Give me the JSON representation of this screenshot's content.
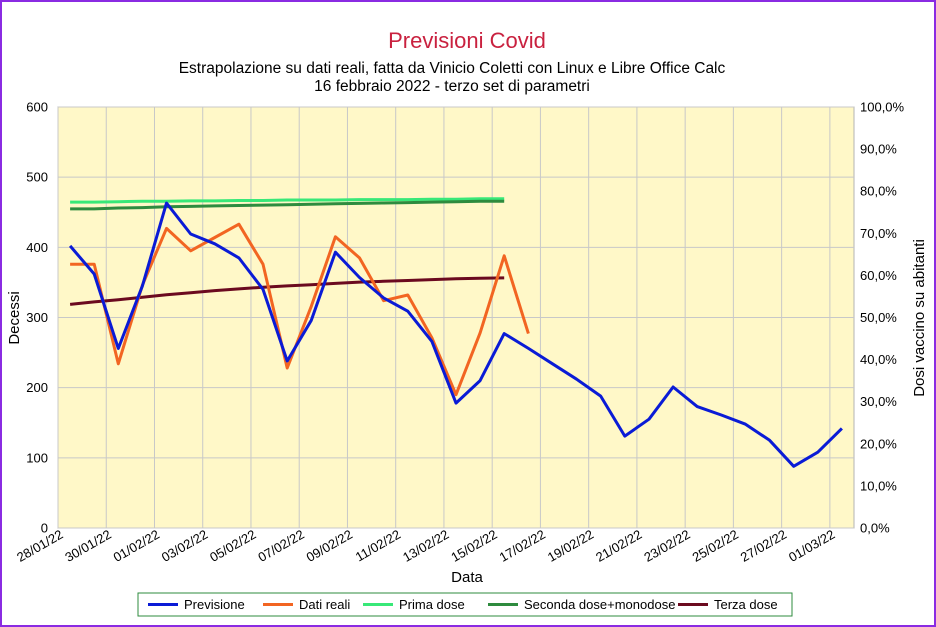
{
  "chart_data": {
    "type": "line",
    "title": "Previsioni Covid",
    "subtitle_lines": [
      "Estrapolazione su dati reali, fatta da Vinicio Coletti con Linux e Libre Office Calc",
      "16 febbraio 2022 - terzo set di parametri"
    ],
    "xlabel": "Data",
    "ylabel": "Decessi",
    "y2label": "Dosi vaccino su abitanti",
    "ylim": [
      0,
      600
    ],
    "y2lim": [
      0,
      100
    ],
    "yticks": [
      "0",
      "100",
      "200",
      "300",
      "400",
      "500",
      "600"
    ],
    "y2ticks": [
      "0,0%",
      "10,0%",
      "20,0%",
      "30,0%",
      "40,0%",
      "50,0%",
      "60,0%",
      "70,0%",
      "80,0%",
      "90,0%",
      "100,0%"
    ],
    "x_dates": [
      "28/01/22",
      "29/01/22",
      "30/01/22",
      "31/01/22",
      "01/02/22",
      "02/02/22",
      "03/02/22",
      "04/02/22",
      "05/02/22",
      "06/02/22",
      "07/02/22",
      "08/02/22",
      "09/02/22",
      "10/02/22",
      "11/02/22",
      "12/02/22",
      "13/02/22",
      "14/02/22",
      "15/02/22",
      "16/02/22",
      "17/02/22",
      "18/02/22",
      "19/02/22",
      "20/02/22",
      "21/02/22",
      "22/02/22",
      "23/02/22",
      "24/02/22",
      "25/02/22",
      "26/02/22",
      "27/02/22",
      "28/02/22",
      "01/03/22"
    ],
    "x_tick_labels": [
      "28/01/22",
      "30/01/22",
      "01/02/22",
      "03/02/22",
      "05/02/22",
      "07/02/22",
      "09/02/22",
      "11/02/22",
      "13/02/22",
      "15/02/22",
      "17/02/22",
      "19/02/22",
      "21/02/22",
      "23/02/22",
      "25/02/22",
      "27/02/22",
      "01/03/22"
    ],
    "grid": true,
    "legend_position": "bottom",
    "plot_background": "#fff8c8",
    "series": [
      {
        "name": "Previsione",
        "axis": "left",
        "color": "#0a1bd6",
        "values": [
          402,
          362,
          256,
          345,
          463,
          419,
          405,
          385,
          340,
          238,
          296,
          393,
          357,
          328,
          309,
          266,
          178,
          210,
          277,
          256,
          234,
          212,
          188,
          131,
          155,
          201,
          173,
          161,
          148,
          125,
          88,
          108,
          142
        ]
      },
      {
        "name": "Dati reali",
        "axis": "left",
        "color": "#f26522",
        "values": [
          376,
          376,
          234,
          346,
          427,
          395,
          414,
          433,
          376,
          228,
          316,
          415,
          385,
          324,
          332,
          271,
          190,
          278,
          388,
          277
        ]
      },
      {
        "name": "Prima dose",
        "axis": "right",
        "color": "#38e878",
        "values": [
          77.4,
          77.4,
          77.5,
          77.6,
          77.6,
          77.7,
          77.7,
          77.8,
          77.8,
          77.9,
          77.9,
          77.9,
          78.0,
          78.0,
          78.0,
          78.1,
          78.1,
          78.2,
          78.2
        ]
      },
      {
        "name": "Seconda dose+monodose",
        "axis": "right",
        "color": "#2e8b3e",
        "values": [
          75.8,
          75.8,
          76.0,
          76.1,
          76.3,
          76.4,
          76.5,
          76.6,
          76.7,
          76.8,
          76.9,
          77.0,
          77.1,
          77.2,
          77.3,
          77.4,
          77.5,
          77.6,
          77.6
        ]
      },
      {
        "name": "Terza dose",
        "axis": "right",
        "color": "#6b0a1f",
        "values": [
          53.1,
          53.7,
          54.2,
          54.8,
          55.4,
          55.9,
          56.4,
          56.8,
          57.2,
          57.5,
          57.8,
          58.1,
          58.4,
          58.6,
          58.8,
          59.0,
          59.2,
          59.3,
          59.4
        ]
      }
    ]
  }
}
